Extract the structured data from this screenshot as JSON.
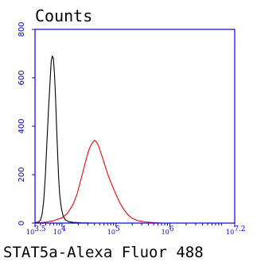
{
  "chart_data": {
    "type": "line",
    "title": "Counts",
    "xlabel": "STAT5a-Alexa Fluor 488",
    "ylabel": "",
    "x_scale": "log10",
    "xlim": [
      3.5,
      7.2
    ],
    "ylim": [
      0,
      800
    ],
    "y_ticks": [
      "0",
      "200",
      "400",
      "600",
      "800"
    ],
    "x_ticks": [
      {
        "base": "10",
        "exp": "3.5",
        "value": 3.5
      },
      {
        "base": "10",
        "exp": "4",
        "value": 4
      },
      {
        "base": "10",
        "exp": "5",
        "value": 5
      },
      {
        "base": "10",
        "exp": "6",
        "value": 6
      },
      {
        "base": "10",
        "exp": "7.2",
        "value": 7.2
      }
    ],
    "axis_color": "#0000ff",
    "series": [
      {
        "color": "#000000",
        "points": [
          [
            3.5,
            2
          ],
          [
            3.56,
            4
          ],
          [
            3.6,
            12
          ],
          [
            3.63,
            35
          ],
          [
            3.66,
            90
          ],
          [
            3.69,
            190
          ],
          [
            3.72,
            330
          ],
          [
            3.75,
            470
          ],
          [
            3.78,
            590
          ],
          [
            3.8,
            670
          ],
          [
            3.82,
            690
          ],
          [
            3.84,
            680
          ],
          [
            3.86,
            620
          ],
          [
            3.88,
            520
          ],
          [
            3.9,
            400
          ],
          [
            3.92,
            280
          ],
          [
            3.94,
            180
          ],
          [
            3.96,
            110
          ],
          [
            3.99,
            60
          ],
          [
            4.02,
            30
          ],
          [
            4.06,
            14
          ],
          [
            4.12,
            6
          ],
          [
            4.2,
            3
          ],
          [
            4.35,
            1
          ],
          [
            4.6,
            0
          ],
          [
            5.2,
            0
          ]
        ]
      },
      {
        "color": "#ff0000",
        "points": [
          [
            3.5,
            0
          ],
          [
            3.7,
            4
          ],
          [
            3.85,
            10
          ],
          [
            4.0,
            22
          ],
          [
            4.1,
            40
          ],
          [
            4.2,
            75
          ],
          [
            4.28,
            120
          ],
          [
            4.35,
            180
          ],
          [
            4.42,
            240
          ],
          [
            4.48,
            290
          ],
          [
            4.52,
            315
          ],
          [
            4.56,
            330
          ],
          [
            4.6,
            342
          ],
          [
            4.64,
            335
          ],
          [
            4.68,
            318
          ],
          [
            4.72,
            290
          ],
          [
            4.78,
            250
          ],
          [
            4.85,
            200
          ],
          [
            4.92,
            160
          ],
          [
            5.0,
            118
          ],
          [
            5.08,
            80
          ],
          [
            5.15,
            55
          ],
          [
            5.22,
            35
          ],
          [
            5.3,
            20
          ],
          [
            5.4,
            10
          ],
          [
            5.55,
            5
          ],
          [
            5.7,
            2
          ],
          [
            5.85,
            0
          ],
          [
            6.0,
            0
          ]
        ]
      }
    ]
  }
}
